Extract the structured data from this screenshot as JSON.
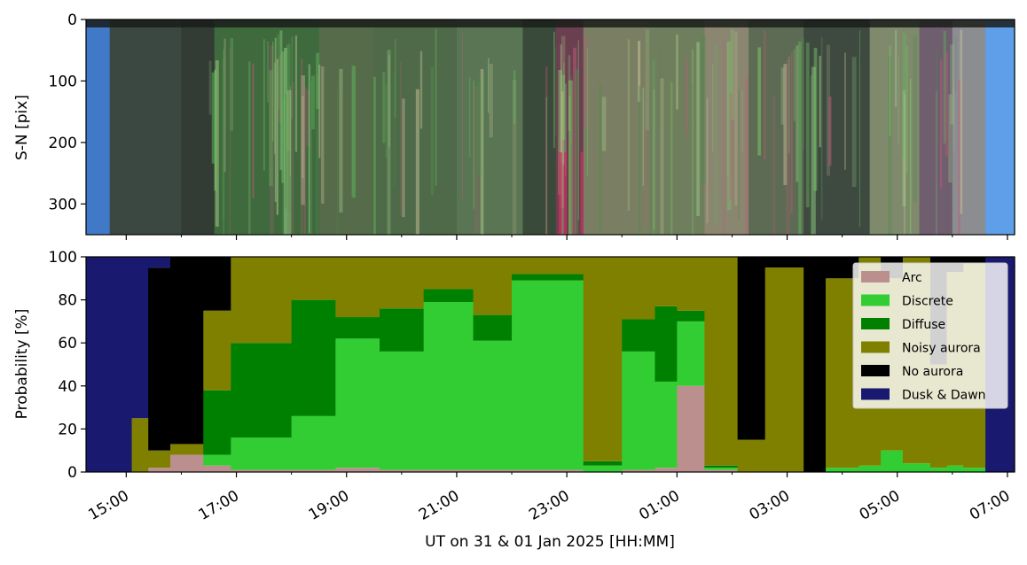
{
  "figure": {
    "xlabel": "UT on 31 & 01 Jan 2025 [HH:MM]",
    "x_tick_labels": [
      "15:00",
      "17:00",
      "19:00",
      "21:00",
      "23:00",
      "01:00",
      "03:00",
      "05:00",
      "07:00"
    ]
  },
  "chart_data": [
    {
      "type": "heatmap",
      "description_kind": "keogram",
      "ylabel": "S-N [pix]",
      "ylim": [
        350,
        0
      ],
      "y_ticks": [
        0,
        100,
        200,
        300
      ],
      "x_range_hours": [
        14.27,
        31.13
      ],
      "color_bands": [
        {
          "start": 14.27,
          "end": 14.7,
          "color": "#3f79c8"
        },
        {
          "start": 14.7,
          "end": 16.0,
          "color": "#3b4741"
        },
        {
          "start": 16.0,
          "end": 16.6,
          "color": "#323b34"
        },
        {
          "start": 16.6,
          "end": 18.5,
          "color": "#3f6a3e"
        },
        {
          "start": 18.5,
          "end": 19.5,
          "color": "#556b4a"
        },
        {
          "start": 19.5,
          "end": 21.0,
          "color": "#4e6a48"
        },
        {
          "start": 21.0,
          "end": 22.2,
          "color": "#5a7553"
        },
        {
          "start": 22.2,
          "end": 22.8,
          "color": "#3a4a3a"
        },
        {
          "start": 22.8,
          "end": 23.3,
          "color": "#6a4050"
        },
        {
          "start": 23.3,
          "end": 24.5,
          "color": "#7a7e62"
        },
        {
          "start": 24.5,
          "end": 25.5,
          "color": "#6f7e5c"
        },
        {
          "start": 25.5,
          "end": 26.3,
          "color": "#8a8670"
        },
        {
          "start": 26.3,
          "end": 27.3,
          "color": "#5e6b54"
        },
        {
          "start": 27.3,
          "end": 28.5,
          "color": "#3e4a40"
        },
        {
          "start": 28.5,
          "end": 29.4,
          "color": "#7f8a6c"
        },
        {
          "start": 29.4,
          "end": 30.0,
          "color": "#6e5e6e"
        },
        {
          "start": 30.0,
          "end": 30.6,
          "color": "#8c8d90"
        },
        {
          "start": 30.6,
          "end": 31.13,
          "color": "#5f9ee8"
        }
      ]
    },
    {
      "type": "area",
      "stacked": true,
      "ylabel": "Probability [%]",
      "ylim": [
        0,
        100
      ],
      "y_ticks": [
        0,
        20,
        40,
        60,
        80,
        100
      ],
      "x_range_hours": [
        14.27,
        31.13
      ],
      "legend_position": "upper right",
      "legend": [
        {
          "name": "Arc",
          "color": "#bc8f8f"
        },
        {
          "name": "Discrete",
          "color": "#32cd32"
        },
        {
          "name": "Diffuse",
          "color": "#008000"
        },
        {
          "name": "Noisy aurora",
          "color": "#808000"
        },
        {
          "name": "No aurora",
          "color": "#000000"
        },
        {
          "name": "Dusk & Dawn",
          "color": "#191970"
        }
      ],
      "segments": [
        {
          "start": 14.27,
          "end": 15.1,
          "Arc": 0,
          "Discrete": 0,
          "Diffuse": 0,
          "Noisy aurora": 0,
          "No aurora": 0,
          "Dusk & Dawn": 100
        },
        {
          "start": 15.1,
          "end": 15.4,
          "Arc": 0,
          "Discrete": 0,
          "Diffuse": 0,
          "Noisy aurora": 25,
          "No aurora": 0,
          "Dusk & Dawn": 75
        },
        {
          "start": 15.4,
          "end": 15.8,
          "Arc": 2,
          "Discrete": 0,
          "Diffuse": 0,
          "Noisy aurora": 8,
          "No aurora": 85,
          "Dusk & Dawn": 5
        },
        {
          "start": 15.8,
          "end": 16.4,
          "Arc": 8,
          "Discrete": 0,
          "Diffuse": 0,
          "Noisy aurora": 5,
          "No aurora": 87,
          "Dusk & Dawn": 0
        },
        {
          "start": 16.4,
          "end": 16.9,
          "Arc": 3,
          "Discrete": 5,
          "Diffuse": 30,
          "Noisy aurora": 37,
          "No aurora": 25,
          "Dusk & Dawn": 0
        },
        {
          "start": 16.9,
          "end": 18.0,
          "Arc": 1,
          "Discrete": 15,
          "Diffuse": 44,
          "Noisy aurora": 40,
          "No aurora": 0,
          "Dusk & Dawn": 0
        },
        {
          "start": 18.0,
          "end": 18.8,
          "Arc": 1,
          "Discrete": 25,
          "Diffuse": 54,
          "Noisy aurora": 20,
          "No aurora": 0,
          "Dusk & Dawn": 0
        },
        {
          "start": 18.8,
          "end": 19.6,
          "Arc": 2,
          "Discrete": 60,
          "Diffuse": 10,
          "Noisy aurora": 28,
          "No aurora": 0,
          "Dusk & Dawn": 0
        },
        {
          "start": 19.6,
          "end": 20.4,
          "Arc": 1,
          "Discrete": 55,
          "Diffuse": 20,
          "Noisy aurora": 24,
          "No aurora": 0,
          "Dusk & Dawn": 0
        },
        {
          "start": 20.4,
          "end": 21.3,
          "Arc": 1,
          "Discrete": 78,
          "Diffuse": 6,
          "Noisy aurora": 15,
          "No aurora": 0,
          "Dusk & Dawn": 0
        },
        {
          "start": 21.3,
          "end": 22.0,
          "Arc": 1,
          "Discrete": 60,
          "Diffuse": 12,
          "Noisy aurora": 27,
          "No aurora": 0,
          "Dusk & Dawn": 0
        },
        {
          "start": 22.0,
          "end": 23.3,
          "Arc": 1,
          "Discrete": 88,
          "Diffuse": 3,
          "Noisy aurora": 8,
          "No aurora": 0,
          "Dusk & Dawn": 0
        },
        {
          "start": 23.3,
          "end": 24.0,
          "Arc": 0,
          "Discrete": 3,
          "Diffuse": 2,
          "Noisy aurora": 95,
          "No aurora": 0,
          "Dusk & Dawn": 0
        },
        {
          "start": 24.0,
          "end": 24.6,
          "Arc": 1,
          "Discrete": 55,
          "Diffuse": 15,
          "Noisy aurora": 29,
          "No aurora": 0,
          "Dusk & Dawn": 0
        },
        {
          "start": 24.6,
          "end": 25.0,
          "Arc": 2,
          "Discrete": 40,
          "Diffuse": 35,
          "Noisy aurora": 23,
          "No aurora": 0,
          "Dusk & Dawn": 0
        },
        {
          "start": 25.0,
          "end": 25.5,
          "Arc": 40,
          "Discrete": 30,
          "Diffuse": 5,
          "Noisy aurora": 25,
          "No aurora": 0,
          "Dusk & Dawn": 0
        },
        {
          "start": 25.5,
          "end": 26.1,
          "Arc": 1,
          "Discrete": 1,
          "Diffuse": 1,
          "Noisy aurora": 97,
          "No aurora": 0,
          "Dusk & Dawn": 0
        },
        {
          "start": 26.1,
          "end": 26.6,
          "Arc": 0,
          "Discrete": 0,
          "Diffuse": 0,
          "Noisy aurora": 15,
          "No aurora": 85,
          "Dusk & Dawn": 0
        },
        {
          "start": 26.6,
          "end": 27.3,
          "Arc": 0,
          "Discrete": 0,
          "Diffuse": 0,
          "Noisy aurora": 95,
          "No aurora": 5,
          "Dusk & Dawn": 0
        },
        {
          "start": 27.3,
          "end": 27.7,
          "Arc": 0,
          "Discrete": 0,
          "Diffuse": 0,
          "Noisy aurora": 0,
          "No aurora": 100,
          "Dusk & Dawn": 0
        },
        {
          "start": 27.7,
          "end": 28.3,
          "Arc": 0,
          "Discrete": 2,
          "Diffuse": 0,
          "Noisy aurora": 88,
          "No aurora": 10,
          "Dusk & Dawn": 0
        },
        {
          "start": 28.3,
          "end": 28.7,
          "Arc": 0,
          "Discrete": 3,
          "Diffuse": 0,
          "Noisy aurora": 97,
          "No aurora": 0,
          "Dusk & Dawn": 0
        },
        {
          "start": 28.7,
          "end": 29.1,
          "Arc": 0,
          "Discrete": 10,
          "Diffuse": 0,
          "Noisy aurora": 80,
          "No aurora": 10,
          "Dusk & Dawn": 0
        },
        {
          "start": 29.1,
          "end": 29.6,
          "Arc": 0,
          "Discrete": 4,
          "Diffuse": 0,
          "Noisy aurora": 96,
          "No aurora": 0,
          "Dusk & Dawn": 0
        },
        {
          "start": 29.6,
          "end": 29.9,
          "Arc": 0,
          "Discrete": 2,
          "Diffuse": 0,
          "Noisy aurora": 48,
          "No aurora": 50,
          "Dusk & Dawn": 0
        },
        {
          "start": 29.9,
          "end": 30.2,
          "Arc": 0,
          "Discrete": 3,
          "Diffuse": 0,
          "Noisy aurora": 90,
          "No aurora": 7,
          "Dusk & Dawn": 0
        },
        {
          "start": 30.2,
          "end": 30.6,
          "Arc": 0,
          "Discrete": 2,
          "Diffuse": 0,
          "Noisy aurora": 95,
          "No aurora": 3,
          "Dusk & Dawn": 0
        },
        {
          "start": 30.6,
          "end": 31.13,
          "Arc": 0,
          "Discrete": 0,
          "Diffuse": 0,
          "Noisy aurora": 0,
          "No aurora": 0,
          "Dusk & Dawn": 100
        }
      ]
    }
  ]
}
